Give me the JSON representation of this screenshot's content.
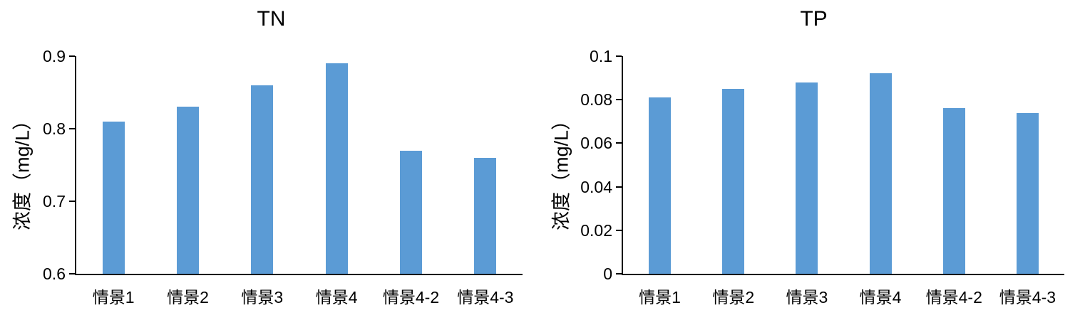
{
  "chart_data": [
    {
      "type": "bar",
      "title": "TN",
      "ylabel": "浓度（mg/L）",
      "xlabel": "",
      "categories": [
        "情景1",
        "情景2",
        "情景3",
        "情景4",
        "情景4-2",
        "情景4-3"
      ],
      "values": [
        0.81,
        0.83,
        0.86,
        0.89,
        0.77,
        0.76
      ],
      "ylim": [
        0.6,
        0.9
      ],
      "yticks": [
        {
          "value": 0.6,
          "label": "0.6"
        },
        {
          "value": 0.7,
          "label": "0.7"
        },
        {
          "value": 0.8,
          "label": "0.8"
        },
        {
          "value": 0.9,
          "label": "0.9"
        }
      ],
      "bar_color": "#5B9BD5",
      "axis_color": "#000000",
      "text_color": "#000000",
      "grid": false,
      "legend": false
    },
    {
      "type": "bar",
      "title": "TP",
      "ylabel": "浓度（mg/L）",
      "xlabel": "",
      "categories": [
        "情景1",
        "情景2",
        "情景3",
        "情景4",
        "情景4-2",
        "情景4-3"
      ],
      "values": [
        0.081,
        0.085,
        0.088,
        0.092,
        0.076,
        0.074
      ],
      "ylim": [
        0,
        0.1
      ],
      "yticks": [
        {
          "value": 0,
          "label": "0"
        },
        {
          "value": 0.02,
          "label": "0.02"
        },
        {
          "value": 0.04,
          "label": "0.04"
        },
        {
          "value": 0.06,
          "label": "0.06"
        },
        {
          "value": 0.08,
          "label": "0.08"
        },
        {
          "value": 0.1,
          "label": "0.1"
        }
      ],
      "bar_color": "#5B9BD5",
      "axis_color": "#000000",
      "text_color": "#000000",
      "grid": false,
      "legend": false
    }
  ],
  "figure": {
    "background": "#FFFFFF"
  }
}
